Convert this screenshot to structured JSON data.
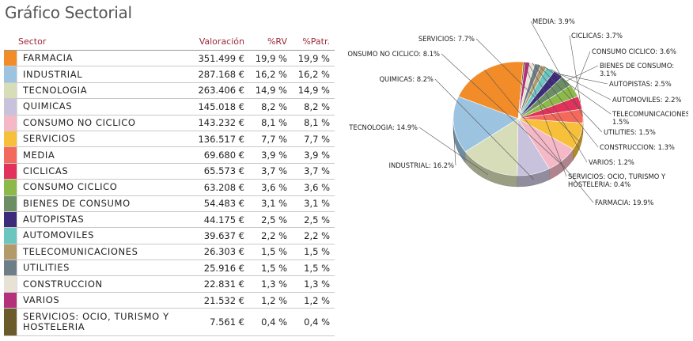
{
  "title": "Gráfico Sectorial",
  "table": {
    "headers": {
      "sector": "Sector",
      "valoracion": "Valoración",
      "rv": "%RV",
      "patr": "%Patr."
    },
    "rows": [
      {
        "sector": "FARMACIA",
        "valoracion": "351.499 €",
        "rv": "19,9 %",
        "patr": "19,9 %",
        "color": "#f28c28"
      },
      {
        "sector": "INDUSTRIAL",
        "valoracion": "287.168 €",
        "rv": "16,2 %",
        "patr": "16,2 %",
        "color": "#9cc3e0"
      },
      {
        "sector": "TECNOLOGIA",
        "valoracion": "263.406 €",
        "rv": "14,9 %",
        "patr": "14,9 %",
        "color": "#d6ddb8"
      },
      {
        "sector": "QUIMICAS",
        "valoracion": "145.018 €",
        "rv": "8,2 %",
        "patr": "8,2 %",
        "color": "#c9c2dc"
      },
      {
        "sector": "CONSUMO NO CICLICO",
        "valoracion": "143.232 €",
        "rv": "8,1 %",
        "patr": "8,1 %",
        "color": "#f4b8c6"
      },
      {
        "sector": "SERVICIOS",
        "valoracion": "136.517 €",
        "rv": "7,7 %",
        "patr": "7,7 %",
        "color": "#f6c03a"
      },
      {
        "sector": "MEDIA",
        "valoracion": "69.680 €",
        "rv": "3,9 %",
        "patr": "3,9 %",
        "color": "#f36a5c"
      },
      {
        "sector": "CICLICAS",
        "valoracion": "65.573 €",
        "rv": "3,7 %",
        "patr": "3,7 %",
        "color": "#e2315a"
      },
      {
        "sector": "CONSUMO CICLICO",
        "valoracion": "63.208 €",
        "rv": "3,6 %",
        "patr": "3,6 %",
        "color": "#8db94a"
      },
      {
        "sector": "BIENES DE CONSUMO",
        "valoracion": "54.483 €",
        "rv": "3,1 %",
        "patr": "3,1 %",
        "color": "#6b8e64"
      },
      {
        "sector": "AUTOPISTAS",
        "valoracion": "44.175 €",
        "rv": "2,5 %",
        "patr": "2,5 %",
        "color": "#3d2a7a"
      },
      {
        "sector": "AUTOMOVILES",
        "valoracion": "39.637 €",
        "rv": "2,2 %",
        "patr": "2,2 %",
        "color": "#6cc6c0"
      },
      {
        "sector": "TELECOMUNICACIONES",
        "valoracion": "26.303 €",
        "rv": "1,5 %",
        "patr": "1,5 %",
        "color": "#b39a6a"
      },
      {
        "sector": "UTILITIES",
        "valoracion": "25.916 €",
        "rv": "1,5 %",
        "patr": "1,5 %",
        "color": "#6e7e86"
      },
      {
        "sector": "CONSTRUCCION",
        "valoracion": "22.831 €",
        "rv": "1,3 %",
        "patr": "1,3 %",
        "color": "#e8e2d6"
      },
      {
        "sector": "VARIOS",
        "valoracion": "21.532 €",
        "rv": "1,2 %",
        "patr": "1,2 %",
        "color": "#b5307a"
      },
      {
        "sector": "SERVICIOS: OCIO, TURISMO Y HOSTELERIA",
        "valoracion": "7.561 €",
        "rv": "0,4 %",
        "patr": "0,4 %",
        "color": "#6b5a2a"
      }
    ]
  },
  "chart_data": {
    "type": "pie",
    "title": "",
    "slices": [
      {
        "label": "FARMACIA: 19.9%",
        "value": 19.9,
        "color": "#f28c28"
      },
      {
        "label": "INDUSTRIAL: 16.2%",
        "value": 16.2,
        "color": "#9cc3e0"
      },
      {
        "label": "TECNOLOGIA: 14.9%",
        "value": 14.9,
        "color": "#d6ddb8"
      },
      {
        "label": "QUIMICAS: 8.2%",
        "value": 8.2,
        "color": "#c9c2dc"
      },
      {
        "label": "CONSUMO NO CICLICO: 8.1%",
        "value": 8.1,
        "color": "#f4b8c6"
      },
      {
        "label": "SERVICIOS: 7.7%",
        "value": 7.7,
        "color": "#f6c03a"
      },
      {
        "label": "MEDIA: 3.9%",
        "value": 3.9,
        "color": "#f36a5c"
      },
      {
        "label": "CICLICAS: 3.7%",
        "value": 3.7,
        "color": "#e2315a"
      },
      {
        "label": "CONSUMO CICLICO: 3.6%",
        "value": 3.6,
        "color": "#8db94a"
      },
      {
        "label": "BIENES DE CONSUMO: 3.1%",
        "value": 3.1,
        "color": "#6b8e64"
      },
      {
        "label": "AUTOPISTAS: 2.5%",
        "value": 2.5,
        "color": "#3d2a7a"
      },
      {
        "label": "AUTOMOVILES: 2.2%",
        "value": 2.2,
        "color": "#6cc6c0"
      },
      {
        "label": "TELECOMUNICACIONES: 1.5%",
        "value": 1.5,
        "color": "#b39a6a"
      },
      {
        "label": "UTILITIES: 1.5%",
        "value": 1.5,
        "color": "#6e7e86"
      },
      {
        "label": "CONSTRUCCION: 1.3%",
        "value": 1.3,
        "color": "#e8e2d6"
      },
      {
        "label": "VARIOS: 1.2%",
        "value": 1.2,
        "color": "#b5307a"
      },
      {
        "label": "SERVICIOS: OCIO, TURISMO Y HOSTELERIA: 0.4%",
        "value": 0.4,
        "color": "#6b5a2a"
      }
    ]
  }
}
